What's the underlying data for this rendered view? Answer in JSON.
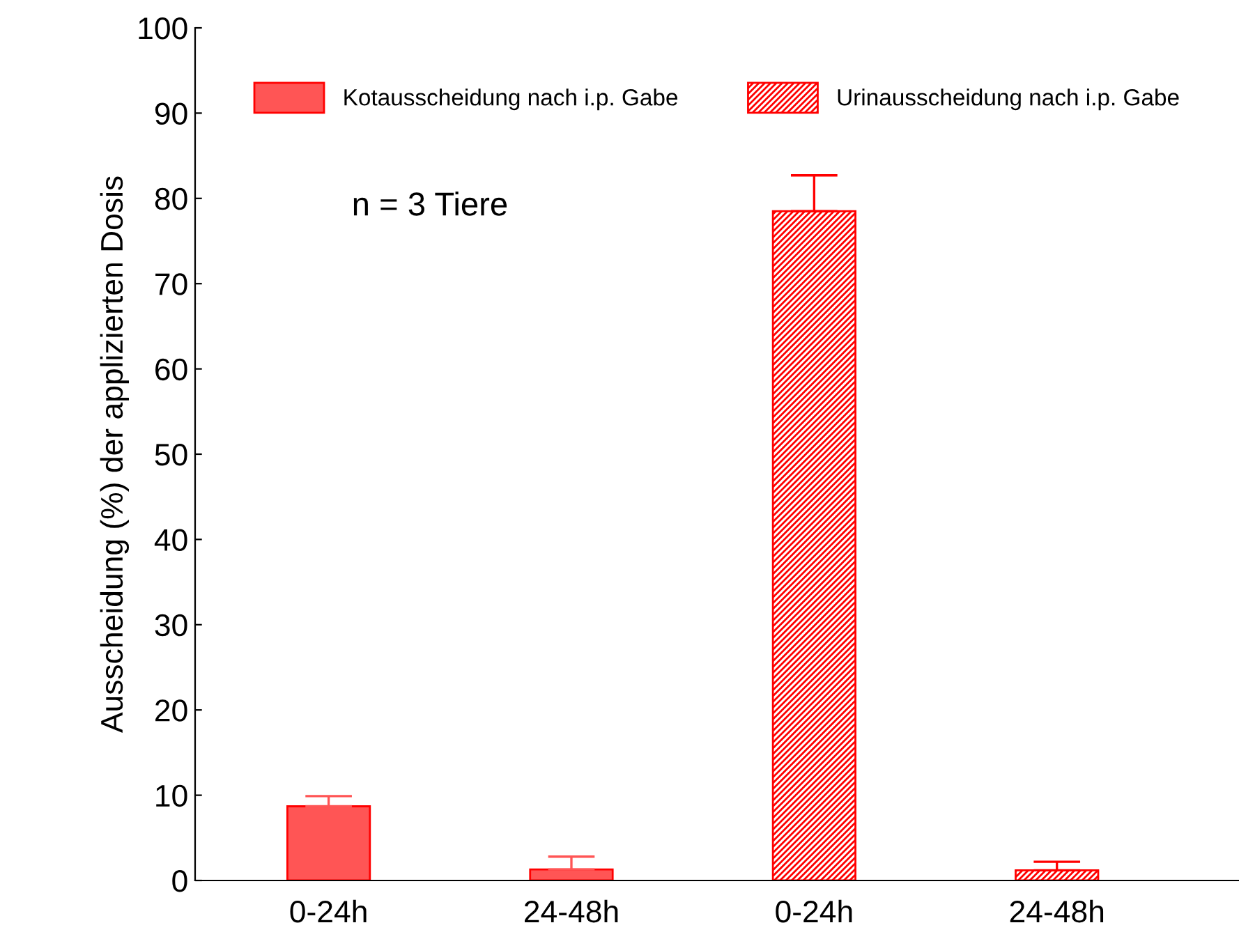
{
  "chart_data": {
    "type": "bar",
    "ylabel": "Ausscheidung (%) der applizierten Dosis",
    "categories": [
      "0-24h",
      "24-48h",
      "0-24h",
      "24-48h"
    ],
    "series": [
      {
        "name": "Kotausscheidung nach i.p. Gabe",
        "color": "#ff5555",
        "values": [
          8.7,
          1.3,
          null,
          null
        ],
        "errors": [
          [
            8.7,
            9.9
          ],
          [
            1.3,
            2.8
          ],
          null,
          null
        ]
      },
      {
        "name": "Urinausscheidung nach i.p. Gabe",
        "color": "#ff0000",
        "values": [
          null,
          null,
          78.5,
          1.2
        ],
        "errors": [
          null,
          null,
          [
            78.5,
            82.7
          ],
          [
            1.2,
            2.2
          ]
        ]
      }
    ],
    "ylim": [
      0,
      100
    ],
    "yticks": [
      0,
      10,
      20,
      30,
      40,
      50,
      60,
      70,
      80,
      90,
      100
    ],
    "legend": "top",
    "grid": false,
    "annotations": [
      {
        "text": "n = 3 Tiere"
      }
    ]
  }
}
